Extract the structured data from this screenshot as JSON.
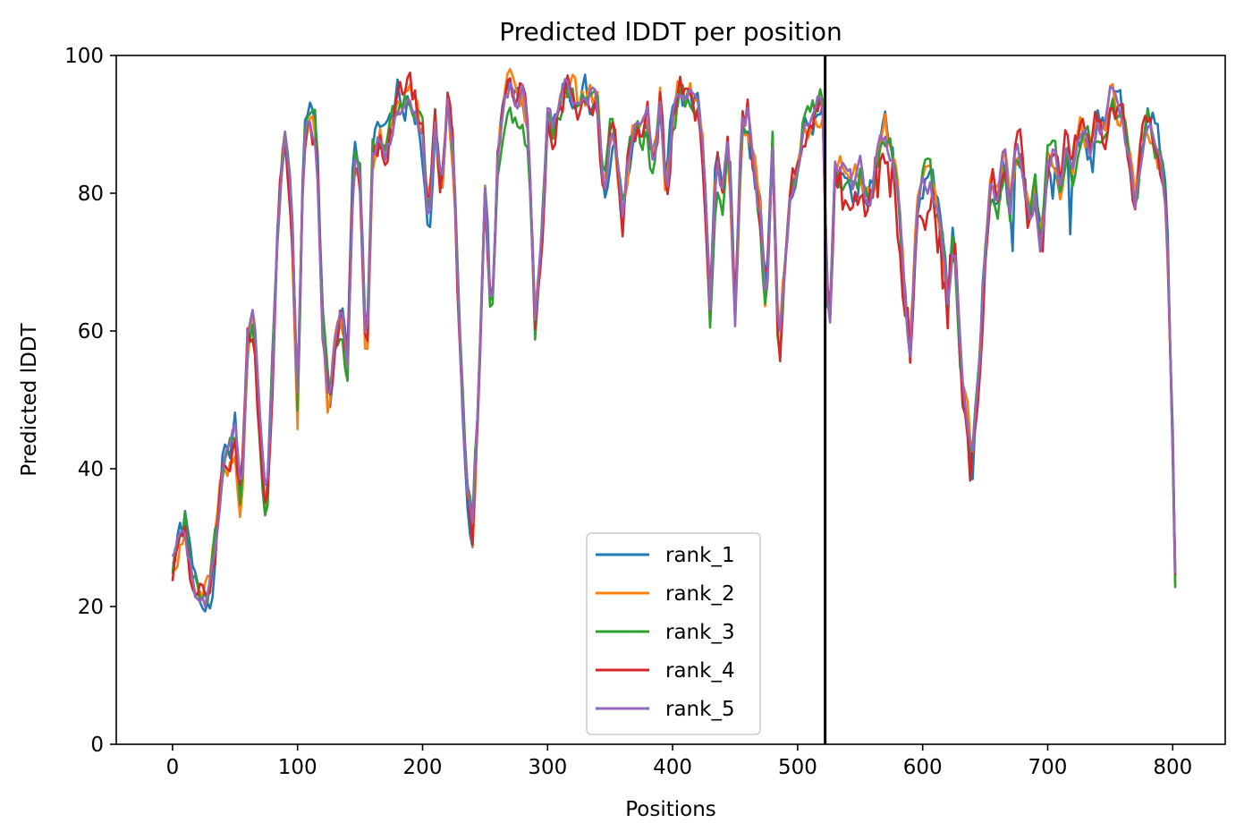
{
  "chart_data": {
    "type": "line",
    "title": "Predicted lDDT per position",
    "xlabel": "Positions",
    "ylabel": "Predicted lDDT",
    "xlim": [
      -45,
      842
    ],
    "ylim": [
      0,
      100
    ],
    "xticks": [
      0,
      100,
      200,
      300,
      400,
      500,
      600,
      700,
      800
    ],
    "yticks": [
      0,
      20,
      40,
      60,
      80,
      100
    ],
    "grid": false,
    "legend_position": "lower-center",
    "vline": {
      "x": 522,
      "color": "#000000"
    },
    "x": [
      0,
      5,
      10,
      15,
      20,
      25,
      30,
      35,
      40,
      45,
      50,
      55,
      60,
      65,
      70,
      75,
      80,
      85,
      90,
      95,
      100,
      105,
      110,
      115,
      120,
      125,
      130,
      135,
      140,
      145,
      150,
      155,
      160,
      165,
      170,
      175,
      180,
      185,
      190,
      195,
      200,
      205,
      210,
      215,
      220,
      225,
      230,
      235,
      240,
      245,
      250,
      255,
      260,
      265,
      270,
      275,
      280,
      285,
      290,
      295,
      300,
      305,
      310,
      315,
      320,
      325,
      330,
      335,
      340,
      345,
      350,
      355,
      360,
      365,
      370,
      375,
      380,
      385,
      390,
      395,
      400,
      405,
      410,
      415,
      420,
      425,
      430,
      435,
      440,
      445,
      450,
      455,
      460,
      465,
      470,
      475,
      480,
      485,
      490,
      495,
      500,
      505,
      510,
      515,
      520,
      525,
      530,
      535,
      540,
      545,
      550,
      555,
      560,
      565,
      570,
      575,
      580,
      585,
      590,
      595,
      600,
      605,
      610,
      615,
      620,
      625,
      630,
      635,
      640,
      645,
      650,
      655,
      660,
      665,
      670,
      675,
      680,
      685,
      690,
      695,
      700,
      705,
      710,
      715,
      720,
      725,
      730,
      735,
      740,
      745,
      750,
      755,
      760,
      765,
      770,
      775,
      780,
      785,
      790,
      795,
      800,
      802
    ],
    "base": [
      26,
      29,
      32,
      25,
      21,
      20,
      23,
      30,
      40,
      42,
      45,
      34,
      58,
      62,
      45,
      33,
      55,
      78,
      90,
      80,
      50,
      88,
      90,
      88,
      62,
      48,
      58,
      62,
      55,
      86,
      82,
      55,
      85,
      88,
      86,
      89,
      93,
      94,
      94,
      93,
      88,
      76,
      90,
      80,
      93,
      85,
      58,
      38,
      30,
      52,
      82,
      62,
      86,
      93,
      95,
      92,
      94,
      88,
      62,
      72,
      92,
      89,
      92,
      95,
      95,
      92,
      93,
      94,
      92,
      80,
      88,
      86,
      76,
      85,
      89,
      88,
      90,
      82,
      93,
      80,
      91,
      95,
      93,
      95,
      92,
      85,
      62,
      85,
      80,
      88,
      62,
      88,
      91,
      84,
      77,
      63,
      88,
      55,
      70,
      80,
      83,
      91,
      90,
      92,
      93,
      57,
      85,
      84,
      82,
      80,
      83,
      79,
      81,
      86,
      89,
      86,
      80,
      68,
      58,
      76,
      81,
      82,
      78,
      73,
      64,
      74,
      57,
      48,
      42,
      55,
      72,
      82,
      79,
      85,
      78,
      87,
      84,
      76,
      80,
      72,
      84,
      86,
      80,
      88,
      83,
      89,
      87,
      86,
      90,
      88,
      93,
      92,
      90,
      85,
      79,
      86,
      90,
      89,
      85,
      78,
      43,
      25
    ],
    "series": [
      {
        "name": "rank_1",
        "color": "#1f77b4",
        "seed": 1,
        "amp": 2.6
      },
      {
        "name": "rank_2",
        "color": "#ff7f0e",
        "seed": 2,
        "amp": 2.2
      },
      {
        "name": "rank_3",
        "color": "#2ca02c",
        "seed": 3,
        "amp": 2.2
      },
      {
        "name": "rank_4",
        "color": "#d62728",
        "seed": 4,
        "amp": 2.6
      },
      {
        "name": "rank_5",
        "color": "#9467bd",
        "seed": 5,
        "amp": 1.6
      }
    ]
  }
}
